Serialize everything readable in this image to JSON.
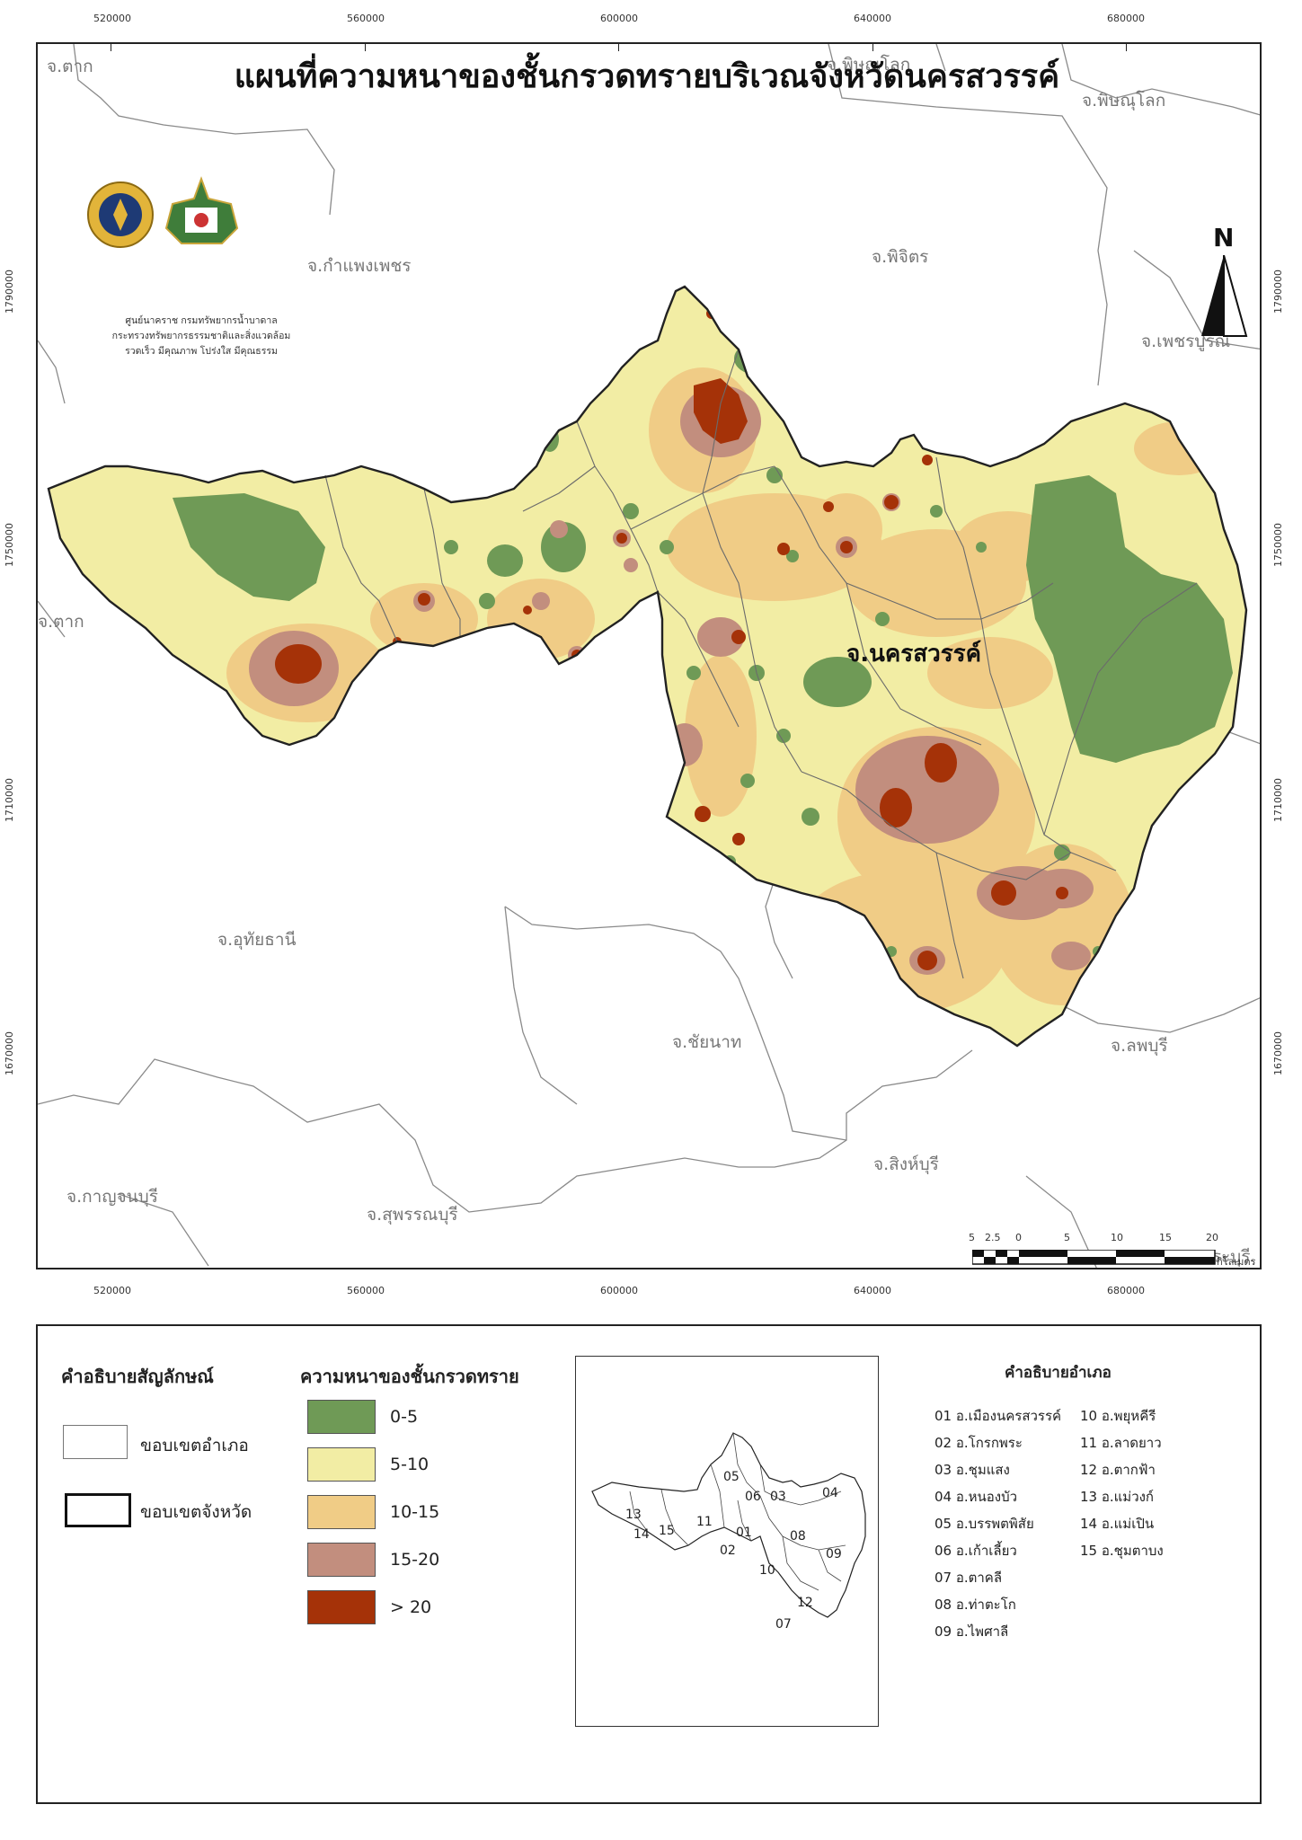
{
  "map": {
    "title": "แผนที่ความหนาของชั้นกรวดทรายบริเวณจังหวัดนครสวรรค์",
    "main_province": "จ.นครสวรรค์",
    "provinces": [
      {
        "key": "tak1",
        "label": "จ.ตาก"
      },
      {
        "key": "pitsanulok1",
        "label": "จ.พิษณุโลก"
      },
      {
        "key": "pitsanulok2",
        "label": "จ.พิษณุโลก"
      },
      {
        "key": "kamphaeng",
        "label": "จ.กำแพงเพชร"
      },
      {
        "key": "phichit",
        "label": "จ.พิจิตร"
      },
      {
        "key": "phetchabun",
        "label": "จ.เพชรบูรณ์"
      },
      {
        "key": "tak2",
        "label": "จ.ตาก"
      },
      {
        "key": "uthai",
        "label": "จ.อุทัยธานี"
      },
      {
        "key": "chainat",
        "label": "จ.ชัยนาท"
      },
      {
        "key": "lopburi",
        "label": "จ.ลพบุรี"
      },
      {
        "key": "singburi",
        "label": "จ.สิงห์บุรี"
      },
      {
        "key": "kanchanaburi",
        "label": "จ.กาญจนบุรี"
      },
      {
        "key": "suphanburi",
        "label": "จ.สุพรรณบุรี"
      },
      {
        "key": "saraburi",
        "label": "จ.สระบุรี"
      }
    ],
    "x_ticks": [
      "520000",
      "560000",
      "600000",
      "640000",
      "680000"
    ],
    "y_ticks": [
      "1790000",
      "1750000",
      "1710000",
      "1670000"
    ],
    "org": {
      "line1": "ศูนย์นาคราช กรมทรัพยากรน้ำบาดาล",
      "line2": "กระทรวงทรัพยากรธรรมชาติและสิ่งแวดล้อม",
      "line3": "รวดเร็ว มีคุณภาพ โปร่งใส มีคุณธรรม"
    },
    "north_label": "N",
    "scale": {
      "labels": [
        "5",
        "2.5",
        "0",
        "5",
        "10",
        "15",
        "20"
      ],
      "unit": "กิโลเมตร"
    }
  },
  "legend": {
    "symbol_title": "คำอธิบายสัญลักษณ์",
    "district_boundary": "ขอบเขตอำเภอ",
    "province_boundary": "ขอบเขตจังหวัด",
    "thickness_title": "ความหนาของชั้นกรวดทราย",
    "classes": [
      {
        "label": "0-5",
        "color": "#6f9a56"
      },
      {
        "label": "5-10",
        "color": "#f2eda4"
      },
      {
        "label": "10-15",
        "color": "#f0cc86"
      },
      {
        "label": "15-20",
        "color": "#c28e7e"
      },
      {
        "label": "> 20",
        "color": "#a53208"
      }
    ],
    "district_title": "คำอธิบายอำเภอ",
    "districts_col1": [
      "01 อ.เมืองนครสวรรค์",
      "02 อ.โกรกพระ",
      "03 อ.ชุมแสง",
      "04 อ.หนองบัว",
      "05 อ.บรรพตพิสัย",
      "06 อ.เก้าเลี้ยว",
      "07 อ.ตาคลี",
      "08 อ.ท่าตะโก",
      "09 อ.ไพศาลี"
    ],
    "districts_col2": [
      "10 อ.พยุหคีรี",
      "11 อ.ลาดยาว",
      "12 อ.ตากฟ้า",
      "13 อ.แม่วงก์",
      "14 อ.แม่เปิน",
      "15 อ.ชุมตาบง"
    ],
    "inset_numbers": [
      "05",
      "06",
      "03",
      "04",
      "13",
      "15",
      "14",
      "11",
      "01",
      "08",
      "02",
      "09",
      "10",
      "12",
      "07"
    ]
  }
}
